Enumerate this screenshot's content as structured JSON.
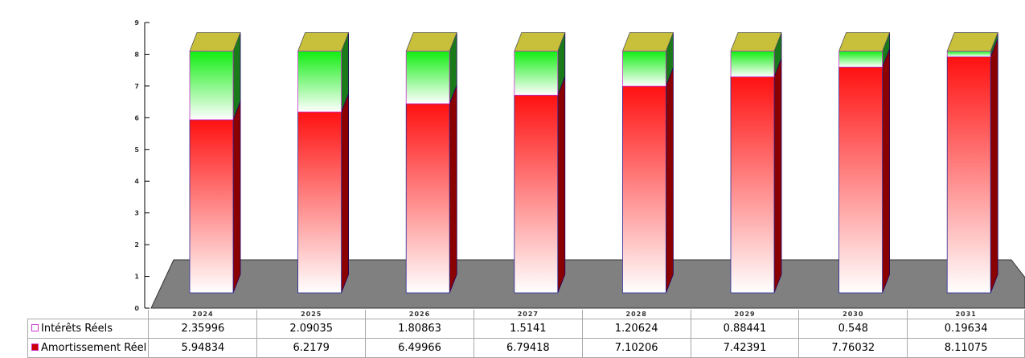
{
  "chart_data": {
    "type": "bar",
    "stacked": true,
    "three_d": true,
    "categories": [
      "2024",
      "2025",
      "2026",
      "2027",
      "2028",
      "2029",
      "2030",
      "2031"
    ],
    "y_ticks": [
      "0",
      "1",
      "2",
      "3",
      "4",
      "5",
      "6",
      "7",
      "8",
      "9"
    ],
    "ylim": [
      0,
      9
    ],
    "series": [
      {
        "name": "Amortissement Réel",
        "values": [
          5.94834,
          6.2179,
          6.49966,
          6.79418,
          7.10206,
          7.42391,
          7.76032,
          8.11075
        ],
        "labels": [
          "5.94834",
          "6.2179",
          "6.49966",
          "6.79418",
          "7.10206",
          "7.42391",
          "7.76032",
          "8.11075"
        ],
        "color": "#ff1a1a",
        "swatch_color": "#cc0000"
      },
      {
        "name": "Intérêts Réels",
        "values": [
          2.35996,
          2.09035,
          1.80863,
          1.5141,
          1.20624,
          0.88441,
          0.548,
          0.19634
        ],
        "labels": [
          "2.35996",
          "2.09035",
          "1.80863",
          "1.5141",
          "1.20624",
          "0.88441",
          "0.548",
          "0.19634"
        ],
        "color": "#22ee22",
        "swatch_color": "#ffffff"
      }
    ],
    "table_rows_order": [
      1,
      0
    ],
    "grid": false,
    "floor_color": "#808080",
    "top_cap_color": "#c8c03a"
  }
}
